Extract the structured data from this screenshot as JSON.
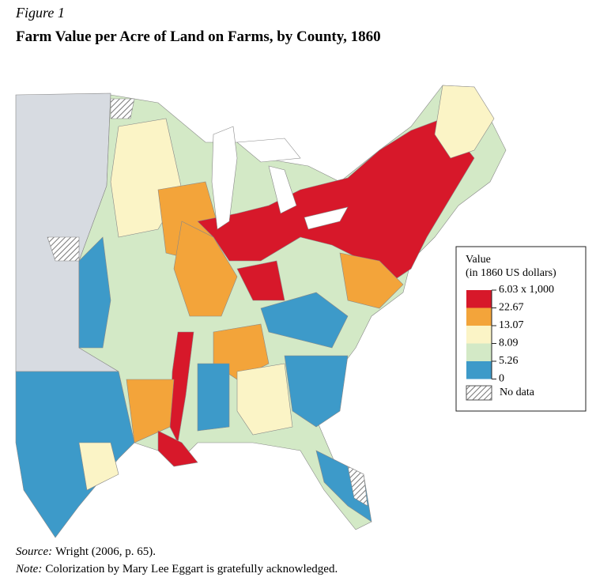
{
  "figure_label": "Figure 1",
  "title": "Farm Value per Acre of Land on Farms, by County, 1860",
  "legend": {
    "title": [
      "Value",
      "(in 1860 US dollars)"
    ],
    "breaks": [
      "6.03 x 1,000",
      "22.67",
      "13.07",
      "8.09",
      "5.26",
      "0"
    ],
    "colors": [
      "#d7182a",
      "#f3a43a",
      "#fbf4c6",
      "#d3e9c6",
      "#3d9ac9"
    ],
    "no_data": "No data"
  },
  "source": {
    "label": "Source:",
    "text": "Wright (2006, p. 65)."
  },
  "note": {
    "label": "Note:",
    "text": "Colorization by Mary Lee Eggart is gratefully acknowledged."
  }
}
